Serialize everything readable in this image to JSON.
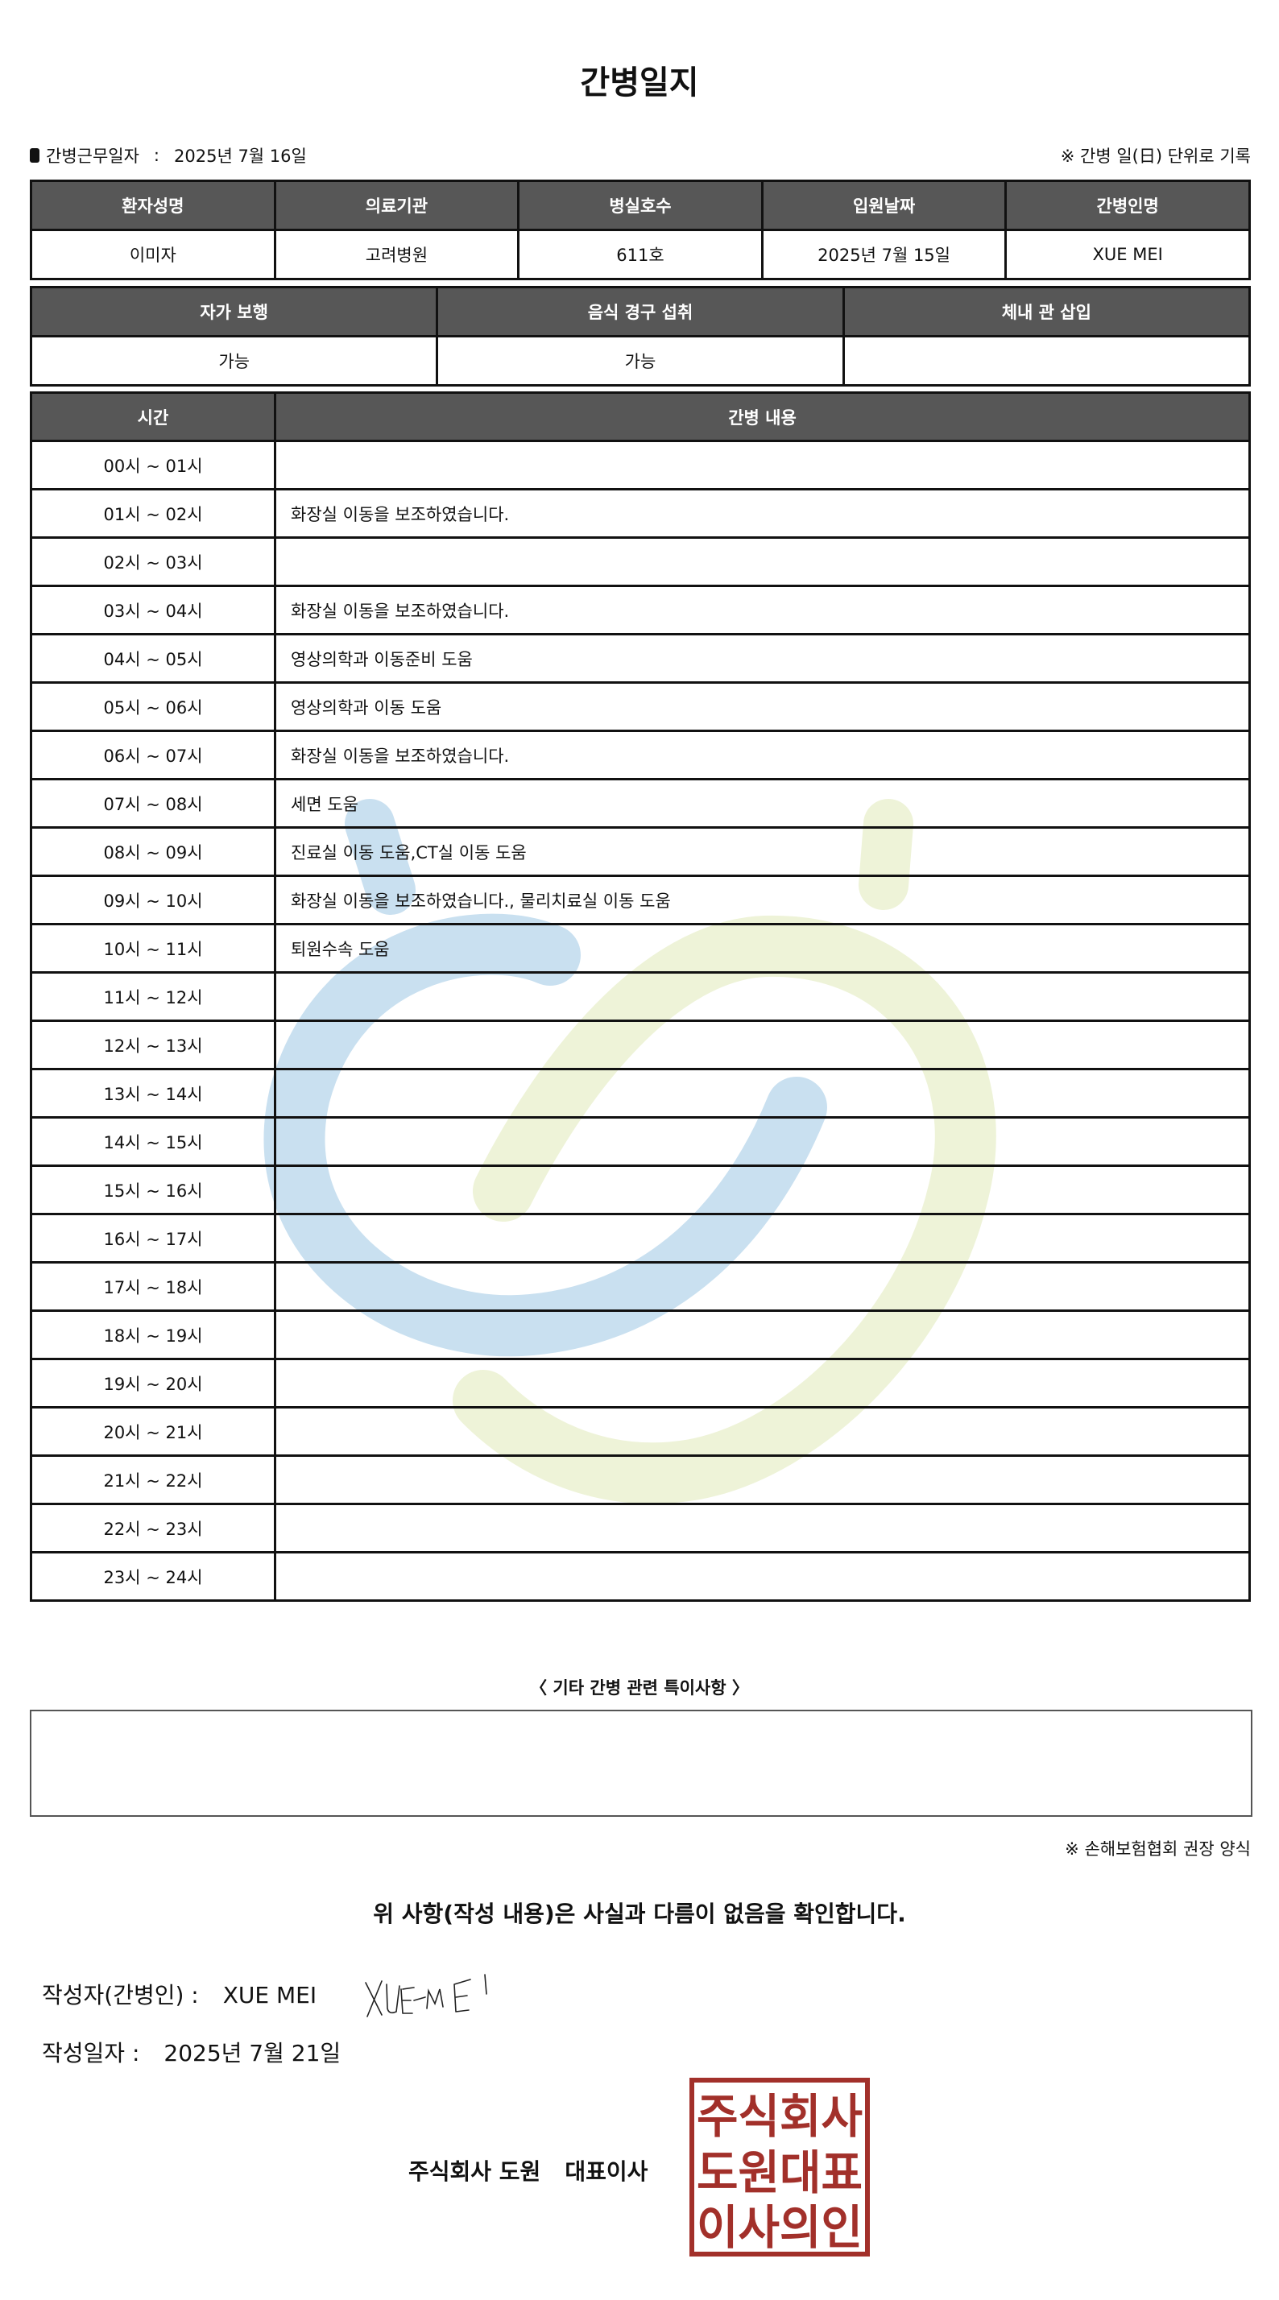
{
  "title": "간병일지",
  "work_date": {
    "label": "간병근무일자",
    "separator": ":",
    "value": "2025년 7월 16일"
  },
  "unit_note": "※ 간병 일(日) 단위로 기록",
  "patient_table": {
    "headers": [
      "환자성명",
      "의료기관",
      "병실호수",
      "입원날짜",
      "간병인명"
    ],
    "values": [
      "이미자",
      "고려병원",
      "611호",
      "2025년 7월 15일",
      "XUE MEI"
    ]
  },
  "status_table": {
    "headers": [
      "자가 보행",
      "음식 경구 섭취",
      "체내 관 삽입"
    ],
    "values": [
      "가능",
      "가능",
      ""
    ]
  },
  "log_table": {
    "headers": [
      "시간",
      "간병 내용"
    ],
    "rows": [
      {
        "time": "00시 ~ 01시",
        "content": ""
      },
      {
        "time": "01시 ~ 02시",
        "content": "화장실 이동을 보조하였습니다."
      },
      {
        "time": "02시 ~ 03시",
        "content": ""
      },
      {
        "time": "03시 ~ 04시",
        "content": "화장실 이동을 보조하였습니다."
      },
      {
        "time": "04시 ~ 05시",
        "content": "영상의학과 이동준비 도움"
      },
      {
        "time": "05시 ~ 06시",
        "content": "영상의학과 이동 도움"
      },
      {
        "time": "06시 ~ 07시",
        "content": "화장실 이동을 보조하였습니다."
      },
      {
        "time": "07시 ~ 08시",
        "content": "세면 도움"
      },
      {
        "time": "08시 ~ 09시",
        "content": "진료실 이동 도움,CT실 이동 도움"
      },
      {
        "time": "09시 ~ 10시",
        "content": "화장실 이동을 보조하였습니다., 물리치료실 이동 도움"
      },
      {
        "time": "10시 ~ 11시",
        "content": "퇴원수속 도움"
      },
      {
        "time": "11시 ~ 12시",
        "content": ""
      },
      {
        "time": "12시 ~ 13시",
        "content": ""
      },
      {
        "time": "13시 ~ 14시",
        "content": ""
      },
      {
        "time": "14시 ~ 15시",
        "content": ""
      },
      {
        "time": "15시 ~ 16시",
        "content": ""
      },
      {
        "time": "16시 ~ 17시",
        "content": ""
      },
      {
        "time": "17시 ~ 18시",
        "content": ""
      },
      {
        "time": "18시 ~ 19시",
        "content": ""
      },
      {
        "time": "19시 ~ 20시",
        "content": ""
      },
      {
        "time": "20시 ~ 21시",
        "content": ""
      },
      {
        "time": "21시 ~ 22시",
        "content": ""
      },
      {
        "time": "22시 ~ 23시",
        "content": ""
      },
      {
        "time": "23시 ~ 24시",
        "content": ""
      }
    ]
  },
  "notes": {
    "label": "〈 기타 간병 관련 특이사항 〉",
    "value": ""
  },
  "form_note": "※ 손해보험협회 권장 양식",
  "confirm_text": "위 사항(작성 내용)은 사실과 다름이 없음을 확인합니다.",
  "writer": {
    "label": "작성자(간병인) :",
    "value": "XUE MEI",
    "signature": "XUEMEI"
  },
  "written_date": {
    "label": "작성일자 :",
    "value": "2025년 7월 21일"
  },
  "company": {
    "name": "주식회사 도원",
    "title": "대표이사"
  },
  "stamp": {
    "text": [
      "주식회사",
      "도원대표",
      "이사의인"
    ],
    "color": "#a2302a"
  },
  "colors": {
    "header_bg": "#575757",
    "watermark_blue": "#c9e0f0",
    "watermark_green": "#eef3d8"
  }
}
